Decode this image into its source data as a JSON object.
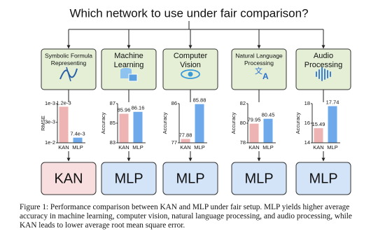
{
  "title": "Which network to use under fair comparison?",
  "panels": [
    {
      "label": [
        "Symbolic Formula",
        "Representing"
      ]
    },
    {
      "label": [
        "Machine",
        "Learning"
      ]
    },
    {
      "label": [
        "Computer",
        "Vision"
      ]
    },
    {
      "label": [
        "Natural Language",
        "Processing"
      ]
    },
    {
      "label": [
        "Audio",
        "Processing"
      ]
    }
  ],
  "chart_data": [
    {
      "type": "bar",
      "ylabel": "RMSE",
      "categories": [
        "KAN",
        "MLP"
      ],
      "values": [
        0.0012,
        0.0074
      ],
      "value_labels": [
        "1.2e-3",
        "7.4e-3"
      ],
      "colors": [
        "#eeb3b3",
        "#6ea9ec"
      ],
      "log_scale": true,
      "ylim": [
        0.01,
        0.001
      ],
      "yticks": [
        {
          "value": 0.001,
          "label": "1e-3"
        },
        {
          "value": 0.003,
          "label": "3e-3"
        },
        {
          "value": 0.01,
          "label": "1e-2"
        }
      ]
    },
    {
      "type": "bar",
      "ylabel": "Accuracy",
      "categories": [
        "KAN",
        "MLP"
      ],
      "values": [
        85.96,
        86.16
      ],
      "colors": [
        "#eeb3b3",
        "#6ea9ec"
      ],
      "ylim": [
        83,
        87
      ],
      "yticks": [
        83,
        85,
        87
      ]
    },
    {
      "type": "bar",
      "ylabel": "Accuracy",
      "categories": [
        "KAN",
        "MLP"
      ],
      "values": [
        77.88,
        85.88
      ],
      "colors": [
        "#eeb3b3",
        "#6ea9ec"
      ],
      "ylim": [
        77,
        86
      ],
      "yticks": [
        77,
        86
      ]
    },
    {
      "type": "bar",
      "ylabel": "Accuracy",
      "categories": [
        "KAN",
        "MLP"
      ],
      "values": [
        79.95,
        80.45
      ],
      "colors": [
        "#eeb3b3",
        "#6ea9ec"
      ],
      "ylim": [
        78,
        82
      ],
      "yticks": [
        78,
        80,
        82
      ]
    },
    {
      "type": "bar",
      "ylabel": "Accuracy",
      "categories": [
        "KAN",
        "MLP"
      ],
      "values": [
        15.49,
        17.74
      ],
      "colors": [
        "#eeb3b3",
        "#6ea9ec"
      ],
      "ylim": [
        14,
        18
      ],
      "yticks": [
        14,
        16,
        18
      ]
    }
  ],
  "winners": [
    "KAN",
    "MLP",
    "MLP",
    "MLP",
    "MLP"
  ],
  "caption": "Figure 1: Performance comparison between KAN and MLP under fair setup. MLP yields higher average accuracy in machine learning, computer vision, natural language processing, and audio processing, while KAN leads to lower average root mean square error."
}
